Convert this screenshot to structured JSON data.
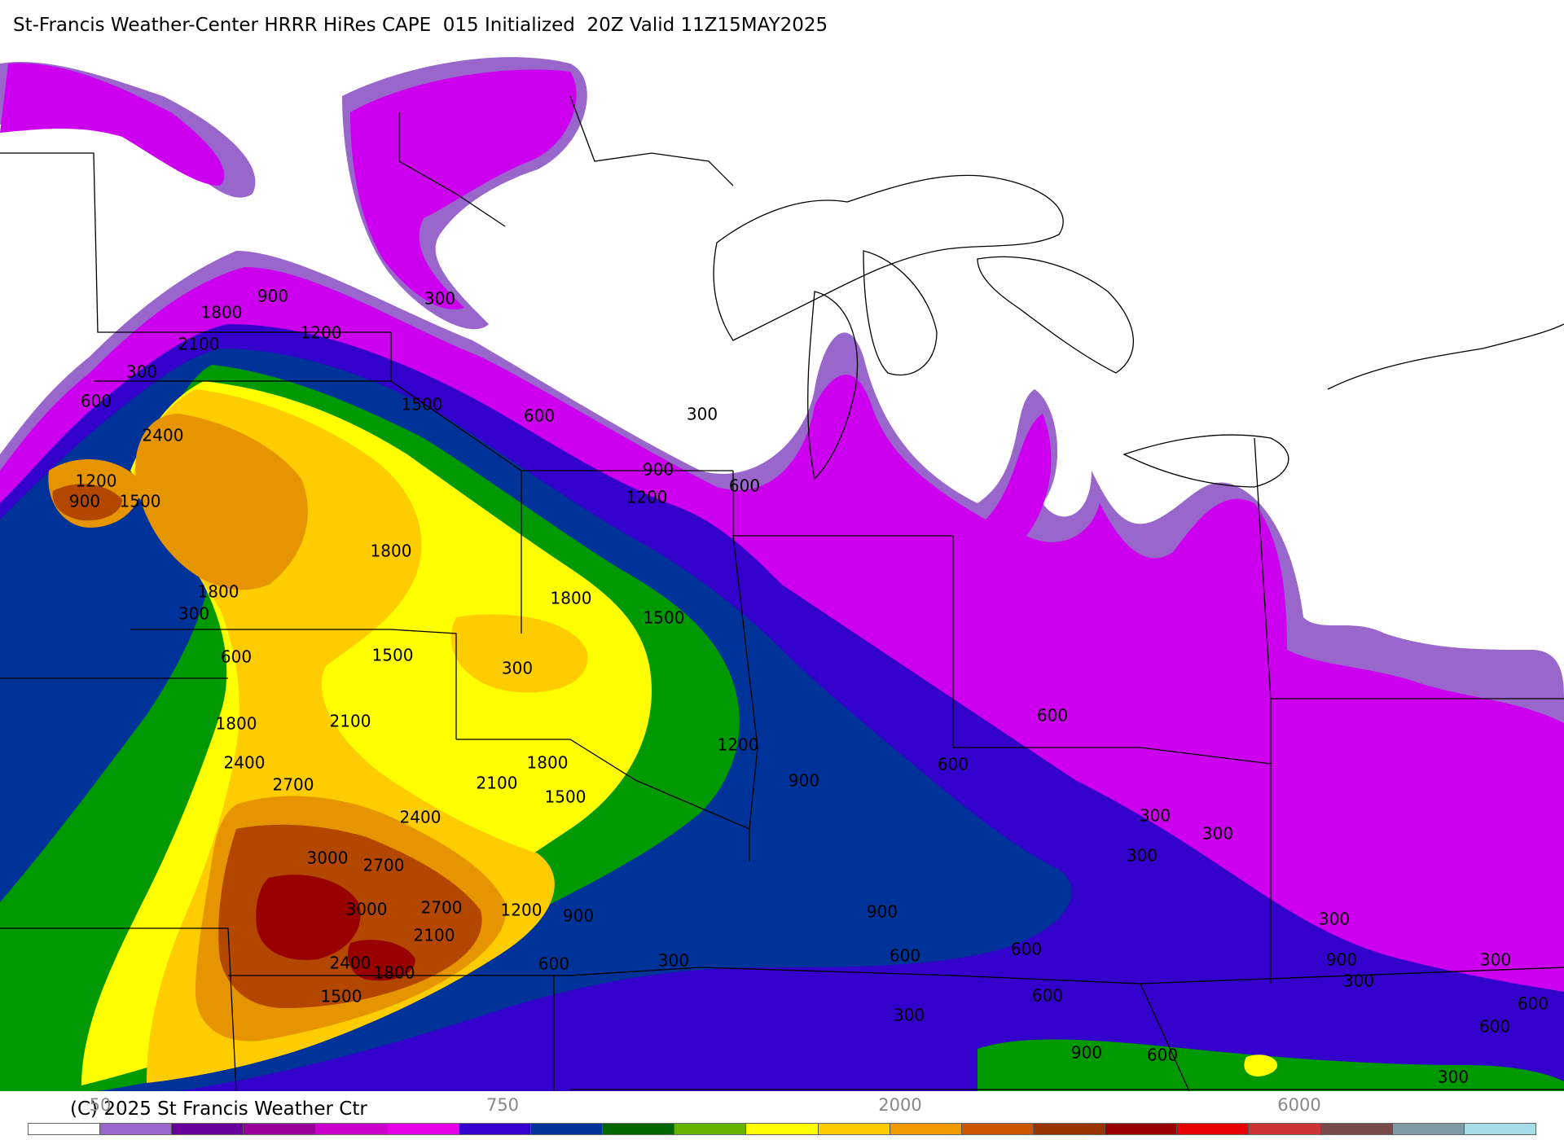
{
  "title": "St-Francis Weather-Center HRRR HiRes CAPE  015 Initialized  20Z Valid 11Z15MAY2025",
  "copyright": "(C) 2025 St Francis Weather Ctr",
  "colorbar": {
    "colors": [
      "#ffffff",
      "#9966cc",
      "#660099",
      "#990099",
      "#cc00cc",
      "#e600e6",
      "#3300cc",
      "#003399",
      "#006600",
      "#66b300",
      "#ffff00",
      "#ffcc00",
      "#f29900",
      "#cc5500",
      "#993300",
      "#990000",
      "#e60000",
      "#cc3333",
      "#7a4a4a",
      "#7f9aa5",
      "#a8dde8"
    ],
    "labels": [
      "50",
      "750",
      "2000",
      "6000"
    ]
  },
  "fill_colors": {
    "c300": "#9966cc",
    "c600": "#cc00ee",
    "c900": "#3300cc",
    "c1200": "#003399",
    "c1500": "#009900",
    "c1800": "#ffff00",
    "c2100": "#ffcc00",
    "c2400": "#e69500",
    "c2700": "#b34700",
    "c3000": "#990000"
  },
  "contour_labels": [
    {
      "text": "900"
    },
    {
      "text": "300"
    },
    {
      "text": "1800"
    },
    {
      "text": "1200"
    },
    {
      "text": "2100"
    },
    {
      "text": "300"
    },
    {
      "text": "1500"
    },
    {
      "text": "600"
    },
    {
      "text": "300"
    },
    {
      "text": "600"
    },
    {
      "text": "2400"
    },
    {
      "text": "1200"
    },
    {
      "text": "900"
    },
    {
      "text": "1500"
    },
    {
      "text": "900"
    },
    {
      "text": "1200"
    },
    {
      "text": "600"
    },
    {
      "text": "1800"
    },
    {
      "text": "1800"
    },
    {
      "text": "1800"
    },
    {
      "text": "1500"
    },
    {
      "text": "300"
    },
    {
      "text": "600"
    },
    {
      "text": "1500"
    },
    {
      "text": "300"
    },
    {
      "text": "1800"
    },
    {
      "text": "2100"
    },
    {
      "text": "600"
    },
    {
      "text": "2400"
    },
    {
      "text": "1800"
    },
    {
      "text": "2700"
    },
    {
      "text": "2100"
    },
    {
      "text": "1200"
    },
    {
      "text": "1500"
    },
    {
      "text": "900"
    },
    {
      "text": "600"
    },
    {
      "text": "300"
    },
    {
      "text": "2400"
    },
    {
      "text": "3000"
    },
    {
      "text": "2700"
    },
    {
      "text": "300"
    },
    {
      "text": "300"
    },
    {
      "text": "2700"
    },
    {
      "text": "1200"
    },
    {
      "text": "900"
    },
    {
      "text": "900"
    },
    {
      "text": "3000"
    },
    {
      "text": "600"
    },
    {
      "text": "600"
    },
    {
      "text": "300"
    },
    {
      "text": "300"
    },
    {
      "text": "300"
    },
    {
      "text": "2100"
    },
    {
      "text": "600"
    },
    {
      "text": "2400"
    },
    {
      "text": "1800"
    },
    {
      "text": "1500"
    },
    {
      "text": "600"
    },
    {
      "text": "900"
    },
    {
      "text": "300"
    },
    {
      "text": "900"
    },
    {
      "text": "600"
    },
    {
      "text": "600"
    },
    {
      "text": "300"
    },
    {
      "text": "600"
    },
    {
      "text": "300"
    }
  ]
}
